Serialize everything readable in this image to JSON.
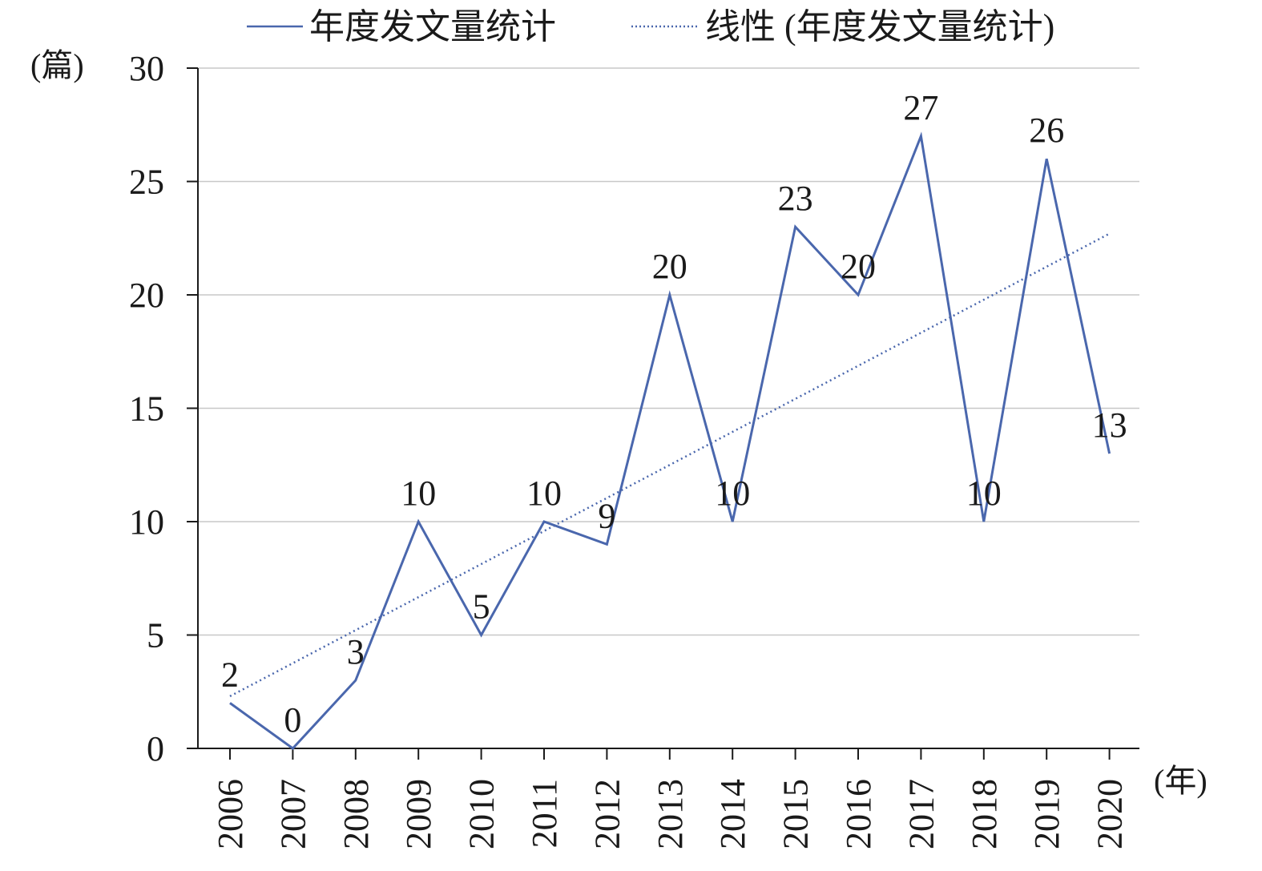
{
  "chart_data": {
    "type": "line",
    "title": "",
    "xlabel": "(年)",
    "ylabel": "(篇)",
    "categories": [
      "2006",
      "2007",
      "2008",
      "2009",
      "2010",
      "2011",
      "2012",
      "2013",
      "2014",
      "2015",
      "2016",
      "2017",
      "2018",
      "2019",
      "2020"
    ],
    "series": [
      {
        "name": "年度发文量统计",
        "values": [
          2,
          0,
          3,
          10,
          5,
          10,
          9,
          20,
          10,
          23,
          20,
          27,
          10,
          26,
          13
        ],
        "data_labels": [
          "2",
          "0",
          "3",
          "10",
          "5",
          "10",
          "9",
          "20",
          "10",
          "23",
          "20",
          "27",
          "10",
          "26",
          "13"
        ],
        "color": "#4a67ad",
        "style": "solid"
      },
      {
        "name": "线性 (年度发文量统计)",
        "kind": "linear-trendline",
        "start": 2.3,
        "end": 22.7,
        "color": "#4a67ad",
        "style": "dotted"
      }
    ],
    "yticks": [
      "0",
      "5",
      "10",
      "15",
      "20",
      "25",
      "30"
    ],
    "ylim": [
      0,
      30
    ],
    "ytick_step": 5,
    "grid": true,
    "legend": "top"
  }
}
